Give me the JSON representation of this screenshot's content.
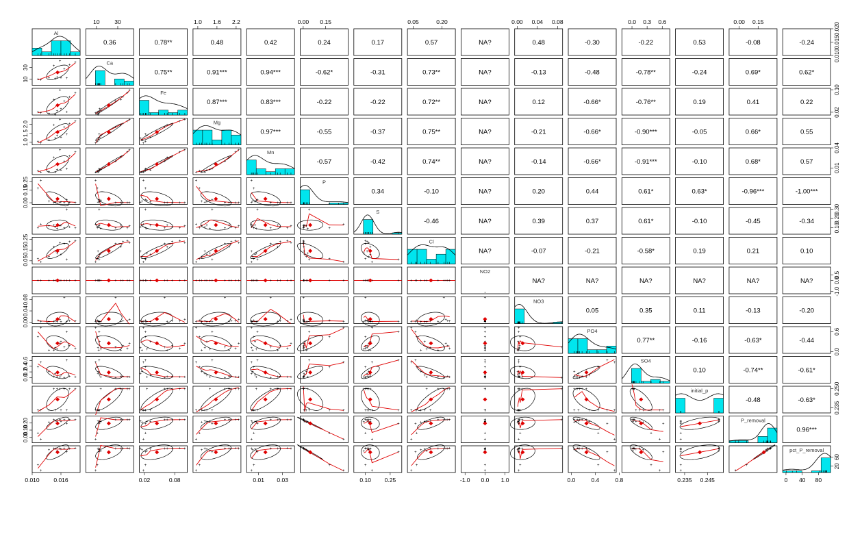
{
  "chart_data": {
    "type": "scatter",
    "subtype": "correlation-matrix",
    "variables": [
      "Al",
      "Ca",
      "Fe",
      "Mg",
      "Mn",
      "P",
      "S",
      "Cl",
      "NO2",
      "NO3",
      "PO4",
      "SO4",
      "initial_p",
      "P_removal",
      "pct_P_removal"
    ],
    "ranges": [
      [
        0.01,
        0.02
      ],
      [
        0,
        45
      ],
      [
        0.01,
        0.105
      ],
      [
        0.85,
        2.35
      ],
      [
        0.0,
        0.04
      ],
      [
        -0.02,
        0.3
      ],
      [
        0.03,
        0.32
      ],
      [
        0.02,
        0.27
      ],
      [
        -1.2,
        1.2
      ],
      [
        -0.005,
        0.09
      ],
      [
        -0.05,
        0.75
      ],
      [
        -0.2,
        0.75
      ],
      [
        0.231,
        0.252
      ],
      [
        -0.08,
        0.3
      ],
      [
        -8,
        110
      ]
    ],
    "tick_labels": {
      "top": [
        {
          "var": 1,
          "values": [
            10,
            30
          ],
          "labels": [
            "10",
            "30"
          ]
        },
        {
          "var": 3,
          "values": [
            1.0,
            1.6,
            2.2
          ],
          "labels": [
            "1.0",
            "1.6",
            "2.2"
          ]
        },
        {
          "var": 5,
          "values": [
            0.0,
            0.15
          ],
          "labels": [
            "0.00",
            "0.15"
          ]
        },
        {
          "var": 7,
          "values": [
            0.05,
            0.2
          ],
          "labels": [
            "0.05",
            "0.20"
          ]
        },
        {
          "var": 9,
          "values": [
            0.0,
            0.04,
            0.08
          ],
          "labels": [
            "0.00",
            "0.04",
            "0.08"
          ]
        },
        {
          "var": 11,
          "values": [
            0.0,
            0.3,
            0.6
          ],
          "labels": [
            "0.0",
            "0.3",
            "0.6"
          ]
        },
        {
          "var": 13,
          "values": [
            0.0,
            0.15
          ],
          "labels": [
            "0.00",
            "0.15"
          ]
        }
      ],
      "bottom": [
        {
          "var": 0,
          "values": [
            0.01,
            0.016
          ],
          "labels": [
            "0.010",
            "0.016"
          ]
        },
        {
          "var": 2,
          "values": [
            0.02,
            0.08
          ],
          "labels": [
            "0.02",
            "0.08"
          ]
        },
        {
          "var": 4,
          "values": [
            0.01,
            0.03
          ],
          "labels": [
            "0.01",
            "0.03"
          ]
        },
        {
          "var": 6,
          "values": [
            0.1,
            0.25
          ],
          "labels": [
            "0.10",
            "0.25"
          ]
        },
        {
          "var": 8,
          "values": [
            -1.0,
            0.0,
            1.0
          ],
          "labels": [
            "-1.0",
            "0.0",
            "1.0"
          ]
        },
        {
          "var": 10,
          "values": [
            0.0,
            0.4,
            0.8
          ],
          "labels": [
            "0.0",
            "0.4",
            "0.8"
          ]
        },
        {
          "var": 12,
          "values": [
            0.235,
            0.245
          ],
          "labels": [
            "0.235",
            "0.245"
          ]
        },
        {
          "var": 14,
          "values": [
            0,
            40,
            80
          ],
          "labels": [
            "0",
            "40",
            "80"
          ]
        }
      ],
      "left": [
        {
          "var": 1,
          "values": [
            10,
            30
          ],
          "labels": [
            "10",
            "30"
          ]
        },
        {
          "var": 3,
          "values": [
            1.0,
            1.5,
            2.0
          ],
          "labels": [
            "1.0",
            "1.5",
            "2.0"
          ]
        },
        {
          "var": 5,
          "values": [
            0.0,
            0.15,
            0.25
          ],
          "labels": [
            "0.00",
            "0.15",
            "0.25"
          ]
        },
        {
          "var": 7,
          "values": [
            0.05,
            0.15,
            0.25
          ],
          "labels": [
            "0.05",
            "0.15",
            "0.25"
          ]
        },
        {
          "var": 9,
          "values": [
            0.0,
            0.04,
            0.08
          ],
          "labels": [
            "0.00",
            "0.04",
            "0.08"
          ]
        },
        {
          "var": 11,
          "values": [
            0.0,
            0.2,
            0.4,
            0.6
          ],
          "labels": [
            "0.0",
            "0.2",
            "0.4",
            "0.6"
          ]
        },
        {
          "var": 13,
          "values": [
            0.0,
            0.1,
            0.2
          ],
          "labels": [
            "0.00",
            "0.10",
            "0.20"
          ]
        }
      ],
      "right": [
        {
          "var": 0,
          "values": [
            0.01,
            0.015,
            0.02
          ],
          "labels": [
            "0.010",
            "0.015",
            "0.020"
          ]
        },
        {
          "var": 2,
          "values": [
            0.02,
            0.1
          ],
          "labels": [
            "0.02",
            "0.10"
          ]
        },
        {
          "var": 4,
          "values": [
            0.01,
            0.04
          ],
          "labels": [
            "0.01",
            "0.04"
          ]
        },
        {
          "var": 6,
          "values": [
            0.1,
            0.2,
            0.3
          ],
          "labels": [
            "0.10",
            "0.20",
            "0.30"
          ]
        },
        {
          "var": 8,
          "values": [
            -1.0,
            0.0,
            0.5
          ],
          "labels": [
            "-1.0",
            "0.0",
            "0.5"
          ]
        },
        {
          "var": 10,
          "values": [
            0.0,
            0.6
          ],
          "labels": [
            "0.0",
            "0.6"
          ]
        },
        {
          "var": 12,
          "values": [
            0.235,
            0.25
          ],
          "labels": [
            "0.235",
            "0.250"
          ]
        },
        {
          "var": 14,
          "values": [
            20,
            60
          ],
          "labels": [
            "20",
            "60"
          ]
        }
      ]
    },
    "correlations": [
      [
        "",
        "0.36",
        "0.78**",
        "0.48",
        "0.42",
        "0.24",
        "0.17",
        "0.57",
        "NA?",
        "0.48",
        "-0.30",
        "-0.22",
        "0.53",
        "-0.08",
        "-0.24"
      ],
      [
        "",
        "",
        "0.75**",
        "0.91***",
        "0.94***",
        "-0.62*",
        "-0.31",
        "0.73**",
        "NA?",
        "-0.13",
        "-0.48",
        "-0.78**",
        "-0.24",
        "0.69*",
        "0.62*"
      ],
      [
        "",
        "",
        "",
        "0.87***",
        "0.83***",
        "-0.22",
        "-0.22",
        "0.72**",
        "NA?",
        "0.12",
        "-0.66*",
        "-0.76**",
        "0.19",
        "0.41",
        "0.22"
      ],
      [
        "",
        "",
        "",
        "",
        "0.97***",
        "-0.55",
        "-0.37",
        "0.75**",
        "NA?",
        "-0.21",
        "-0.66*",
        "-0.90***",
        "-0.05",
        "0.66*",
        "0.55"
      ],
      [
        "",
        "",
        "",
        "",
        "",
        "-0.57",
        "-0.42",
        "0.74**",
        "NA?",
        "-0.14",
        "-0.66*",
        "-0.91***",
        "-0.10",
        "0.68*",
        "0.57"
      ],
      [
        "",
        "",
        "",
        "",
        "",
        "",
        "0.34",
        "-0.10",
        "NA?",
        "0.20",
        "0.44",
        "0.61*",
        "0.63*",
        "-0.96***",
        "-1.00***"
      ],
      [
        "",
        "",
        "",
        "",
        "",
        "",
        "",
        "-0.46",
        "NA?",
        "0.39",
        "0.37",
        "0.61*",
        "-0.10",
        "-0.45",
        "-0.34"
      ],
      [
        "",
        "",
        "",
        "",
        "",
        "",
        "",
        "",
        "NA?",
        "-0.07",
        "-0.21",
        "-0.58*",
        "0.19",
        "0.21",
        "0.10"
      ],
      [
        "",
        "",
        "",
        "",
        "",
        "",
        "",
        "",
        "",
        "NA?",
        "NA?",
        "NA?",
        "NA?",
        "NA?",
        "NA?"
      ],
      [
        "",
        "",
        "",
        "",
        "",
        "",
        "",
        "",
        "",
        "",
        "0.05",
        "0.35",
        "0.11",
        "-0.13",
        "-0.20"
      ],
      [
        "",
        "",
        "",
        "",
        "",
        "",
        "",
        "",
        "",
        "",
        "",
        "0.77**",
        "-0.16",
        "-0.63*",
        "-0.44"
      ],
      [
        "",
        "",
        "",
        "",
        "",
        "",
        "",
        "",
        "",
        "",
        "",
        "",
        "0.10",
        "-0.74**",
        "-0.61*"
      ],
      [
        "",
        "",
        "",
        "",
        "",
        "",
        "",
        "",
        "",
        "",
        "",
        "",
        "",
        "-0.48",
        "-0.63*"
      ],
      [
        "",
        "",
        "",
        "",
        "",
        "",
        "",
        "",
        "",
        "",
        "",
        "",
        "",
        "",
        "0.96***"
      ],
      [
        "",
        "",
        "",
        "",
        "",
        "",
        "",
        "",
        "",
        "",
        "",
        "",
        "",
        "",
        ""
      ]
    ],
    "observations": [
      {
        "Al": 0.0118,
        "Ca": 9.2,
        "Fe": 0.018,
        "Mg": 0.95,
        "Mn": 0.004,
        "P": 0.27,
        "S": 0.14,
        "Cl": 0.04,
        "NO2": 0,
        "NO3": 0.003,
        "PO4": 0.72,
        "SO4": 0.55,
        "initial_p": 0.2333,
        "P_removal": -0.03,
        "pct_P_removal": 1
      },
      {
        "Al": 0.0112,
        "Ca": 10.8,
        "Fe": 0.022,
        "Mg": 1.05,
        "Mn": 0.006,
        "P": 0.175,
        "S": 0.1,
        "Cl": 0.068,
        "NO2": 0,
        "NO3": 0.006,
        "PO4": 0.45,
        "SO4": 0.38,
        "initial_p": 0.2333,
        "P_removal": 0.06,
        "pct_P_removal": 26
      },
      {
        "Al": 0.0135,
        "Ca": 12.1,
        "Fe": 0.015,
        "Mg": 1.12,
        "Mn": 0.005,
        "P": 0.02,
        "S": 0.12,
        "Cl": 0.09,
        "NO2": 0,
        "NO3": 0.001,
        "PO4": 0.05,
        "SO4": 0.22,
        "initial_p": 0.2333,
        "P_removal": 0.214,
        "pct_P_removal": 92
      },
      {
        "Al": 0.016,
        "Ca": 13.0,
        "Fe": 0.032,
        "Mg": 1.28,
        "Mn": 0.007,
        "P": 0.01,
        "S": 0.13,
        "Cl": 0.11,
        "NO2": 0,
        "NO3": 0.002,
        "PO4": 0.3,
        "SO4": 0.08,
        "initial_p": 0.2333,
        "P_removal": 0.224,
        "pct_P_removal": 96
      },
      {
        "Al": 0.0148,
        "Ca": 11.5,
        "Fe": 0.012,
        "Mg": 1.22,
        "Mn": 0.004,
        "P": 0.005,
        "S": 0.11,
        "Cl": 0.14,
        "NO2": 0,
        "NO3": 0.004,
        "PO4": 0.12,
        "SO4": 0.15,
        "initial_p": 0.2333,
        "P_removal": 0.229,
        "pct_P_removal": 98
      },
      {
        "Al": 0.0172,
        "Ca": 12.6,
        "Fe": 0.022,
        "Mg": 1.45,
        "Mn": 0.009,
        "P": 0.04,
        "S": 0.3,
        "Cl": 0.062,
        "NO2": 0,
        "NO3": 0.003,
        "PO4": 0.6,
        "SO4": 0.62,
        "initial_p": 0.2333,
        "P_removal": 0.194,
        "pct_P_removal": 83
      },
      {
        "Al": 0.0152,
        "Ca": 14.0,
        "Fe": 0.025,
        "Mg": 1.38,
        "Mn": 0.008,
        "P": 0.03,
        "S": 0.09,
        "Cl": 0.12,
        "NO2": 0,
        "NO3": 0.002,
        "PO4": 0.08,
        "SO4": 0.02,
        "initial_p": 0.25,
        "P_removal": 0.22,
        "pct_P_removal": 88
      },
      {
        "Al": 0.0167,
        "Ca": 28.0,
        "Fe": 0.06,
        "Mg": 1.85,
        "Mn": 0.02,
        "P": 0.002,
        "S": 0.1,
        "Cl": 0.21,
        "NO2": 0,
        "NO3": 0.088,
        "PO4": 0.14,
        "SO4": 0.0,
        "initial_p": 0.25,
        "P_removal": 0.248,
        "pct_P_removal": 99
      },
      {
        "Al": 0.0178,
        "Ca": 35.0,
        "Fe": 0.075,
        "Mg": 2.05,
        "Mn": 0.028,
        "P": 0.003,
        "S": 0.11,
        "Cl": 0.23,
        "NO2": 0,
        "NO3": 0.005,
        "PO4": 0.18,
        "SO4": 0.05,
        "initial_p": 0.25,
        "P_removal": 0.247,
        "pct_P_removal": 99
      },
      {
        "Al": 0.019,
        "Ca": 39.0,
        "Fe": 0.09,
        "Mg": 2.18,
        "Mn": 0.034,
        "P": 0.001,
        "S": 0.1,
        "Cl": 0.24,
        "NO2": 0,
        "NO3": 0.004,
        "PO4": 0.1,
        "SO4": 0.03,
        "initial_p": 0.25,
        "P_removal": 0.249,
        "pct_P_removal": 100
      },
      {
        "Al": 0.0158,
        "Ca": 41.0,
        "Fe": 0.1,
        "Mg": 2.28,
        "Mn": 0.037,
        "P": 0.002,
        "S": 0.12,
        "Cl": 0.22,
        "NO2": 0,
        "NO3": 0.01,
        "PO4": 0.25,
        "SO4": 0.02,
        "initial_p": 0.25,
        "P_removal": 0.248,
        "pct_P_removal": 99
      },
      {
        "Al": 0.0145,
        "Ca": 33.0,
        "Fe": 0.065,
        "Mg": 1.98,
        "Mn": 0.026,
        "P": 0.004,
        "S": 0.13,
        "Cl": 0.18,
        "NO2": 0,
        "NO3": 0.003,
        "PO4": 0.05,
        "SO4": 0.04,
        "initial_p": 0.25,
        "P_removal": 0.246,
        "pct_P_removal": 98
      }
    ],
    "colors": {
      "histogram": "#00E5EE",
      "smoother": "#E00000",
      "centroid": "#E00000",
      "ellipse": "#000000",
      "points": "#000000",
      "frame": "#000000"
    }
  }
}
